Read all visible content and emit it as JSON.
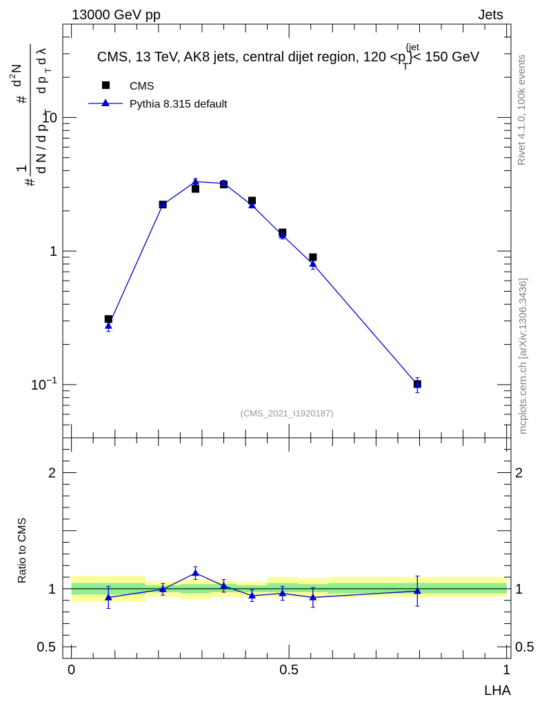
{
  "header": {
    "left": "13000 GeV pp",
    "right": "Jets"
  },
  "side_labels": {
    "rivet": "Rivet 4.1.0,  100k events",
    "mcplots": "mcplots.cern.ch [arXiv:1306.3436]"
  },
  "watermark": "(CMS_2021_I1920187)",
  "chart_data": [
    {
      "type": "scatter",
      "title": "CMS, 13 TeV, AK8 jets, central dijet region, 120 < p_T^{jet} < 150 GeV",
      "title_main": "CMS, 13 TeV, AK8 jets, central dijet region, 120 <p",
      "title_sup": "{jet",
      "title_sub": "T",
      "title_end": "}< 150 GeV",
      "ylabel": "1/(dN/dp_T) d^2N/(dp_T dλ)",
      "yscale": "log",
      "ylim": [
        0.04,
        50
      ],
      "xlim": [
        -0.02,
        1.01
      ],
      "y_ticks": [
        {
          "value": 10,
          "label": "10"
        },
        {
          "value": 1,
          "label": "1"
        },
        {
          "value": 0.1,
          "label": "10",
          "sup": "−1"
        }
      ],
      "legend": [
        {
          "name": "CMS",
          "marker": "square",
          "color": "#000000"
        },
        {
          "name": "Pythia 8.315 default",
          "marker": "triangle",
          "color": "#0000cc"
        }
      ],
      "series": [
        {
          "name": "CMS",
          "x": [
            0.085,
            0.21,
            0.285,
            0.35,
            0.415,
            0.485,
            0.555,
            0.795
          ],
          "y": [
            0.31,
            2.23,
            2.92,
            3.15,
            2.39,
            1.38,
            0.9,
            0.101
          ]
        },
        {
          "name": "Pythia 8.315 default",
          "x": [
            0.085,
            0.21,
            0.285,
            0.35,
            0.415,
            0.485,
            0.555,
            0.795
          ],
          "y": [
            0.275,
            2.23,
            3.31,
            3.21,
            2.2,
            1.31,
            0.8,
            0.1
          ],
          "yerr": [
            0.025,
            0.09,
            0.18,
            0.17,
            0.1,
            0.08,
            0.07,
            0.013
          ]
        }
      ]
    },
    {
      "type": "scatter",
      "ylabel": "Ratio to CMS",
      "xlabel": "LHA",
      "ylim": [
        0.4,
        2.3
      ],
      "xlim": [
        -0.02,
        1.01
      ],
      "y_ticks": [
        {
          "value": 2,
          "label": "2"
        },
        {
          "value": 1,
          "label": "1"
        },
        {
          "value": 0.5,
          "label": "0.5"
        }
      ],
      "x_ticks": [
        {
          "value": 0,
          "label": "0"
        },
        {
          "value": 0.5,
          "label": "0.5"
        },
        {
          "value": 1,
          "label": "1"
        }
      ],
      "bands": {
        "edges": [
          0,
          0.17,
          0.25,
          0.32,
          0.38,
          0.45,
          0.52,
          0.59,
          1.0
        ],
        "yellow": [
          [
            0.89,
            1.11
          ],
          [
            0.93,
            1.06
          ],
          [
            0.91,
            1.08
          ],
          [
            0.93,
            1.07
          ],
          [
            0.93,
            1.06
          ],
          [
            0.93,
            1.1
          ],
          [
            0.93,
            1.09
          ],
          [
            0.93,
            1.1
          ]
        ],
        "green": [
          [
            0.95,
            1.05
          ],
          [
            0.97,
            1.03
          ],
          [
            0.96,
            1.04
          ],
          [
            0.97,
            1.04
          ],
          [
            0.97,
            1.03
          ],
          [
            0.97,
            1.05
          ],
          [
            0.97,
            1.04
          ],
          [
            0.96,
            1.05
          ]
        ]
      },
      "series": [
        {
          "name": "Pythia 8.315 default",
          "x": [
            0.085,
            0.21,
            0.285,
            0.35,
            0.415,
            0.485,
            0.555,
            0.795
          ],
          "y": [
            0.925,
            0.995,
            1.135,
            1.025,
            0.94,
            0.96,
            0.925,
            0.98
          ],
          "yerr": [
            0.095,
            0.05,
            0.055,
            0.055,
            0.05,
            0.06,
            0.085,
            0.13
          ]
        }
      ]
    }
  ]
}
